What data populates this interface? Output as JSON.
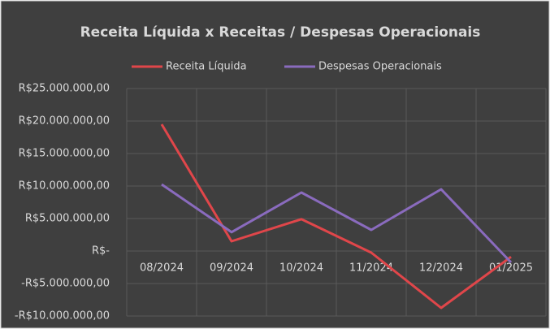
{
  "chart_data": {
    "type": "line",
    "title": "Receita Líquida x Receitas / Despesas Operacionais",
    "categories": [
      "08/2024",
      "09/2024",
      "10/2024",
      "11/2024",
      "12/2024",
      "01/2025"
    ],
    "series": [
      {
        "name": "Receita Líquida",
        "color": "#e0464a",
        "values": [
          19500000,
          1500000,
          4900000,
          -250000,
          -8750000,
          -900000
        ]
      },
      {
        "name": "Despesas Operacionais",
        "color": "#8a6bbe",
        "values": [
          10250000,
          2900000,
          9000000,
          3250000,
          9500000,
          -1750000
        ]
      }
    ],
    "ylim": [
      -10000000,
      25000000
    ],
    "yticks": [
      {
        "value": -10000000,
        "label": "-R$10.000.000,00"
      },
      {
        "value": -5000000,
        "label": "-R$5.000.000,00"
      },
      {
        "value": 0,
        "label": "R$-"
      },
      {
        "value": 5000000,
        "label": "R$5.000.000,00"
      },
      {
        "value": 10000000,
        "label": "R$10.000.000,00"
      },
      {
        "value": 15000000,
        "label": "R$15.000.000,00"
      },
      {
        "value": 20000000,
        "label": "R$20.000.000,00"
      },
      {
        "value": 25000000,
        "label": "R$25.000.000,00"
      }
    ],
    "grid": true,
    "legend": "top"
  }
}
